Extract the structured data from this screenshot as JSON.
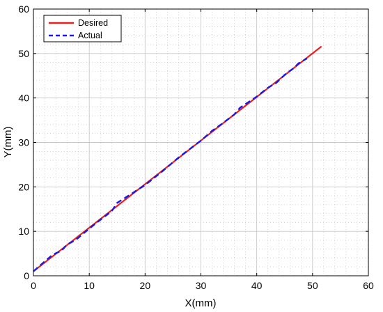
{
  "chart_data": {
    "type": "line",
    "xlabel": "X(mm)",
    "ylabel": "Y(mm)",
    "xlim": [
      0,
      60
    ],
    "ylim": [
      0,
      60
    ],
    "xticks": [
      0,
      10,
      20,
      30,
      40,
      50,
      60
    ],
    "yticks": [
      0,
      10,
      20,
      30,
      40,
      50,
      60
    ],
    "grid": true,
    "minor_grid": true,
    "legend_position": "top-left",
    "series": [
      {
        "name": "Desired",
        "color": "#e8201e",
        "style": "solid",
        "x": [
          0,
          51.6
        ],
        "y": [
          1.0,
          51.6
        ]
      },
      {
        "name": "Actual",
        "color": "#1a1ae6",
        "style": "dashed",
        "x": [
          0,
          2,
          3.5,
          5,
          6,
          7.5,
          10,
          12,
          14,
          15,
          16,
          18,
          20,
          23,
          26,
          30,
          32,
          34,
          36,
          37,
          40,
          42,
          43.5,
          45,
          46.5,
          47.5,
          49
        ],
        "y": [
          1.0,
          3.2,
          4.8,
          5.6,
          7.0,
          8.0,
          10.6,
          12.6,
          14.5,
          16.4,
          17.2,
          18.8,
          20.4,
          23.4,
          26.6,
          30.4,
          32.6,
          34.4,
          36.3,
          37.8,
          40.3,
          42.3,
          43.4,
          45.2,
          46.6,
          47.8,
          48.9
        ]
      }
    ]
  }
}
